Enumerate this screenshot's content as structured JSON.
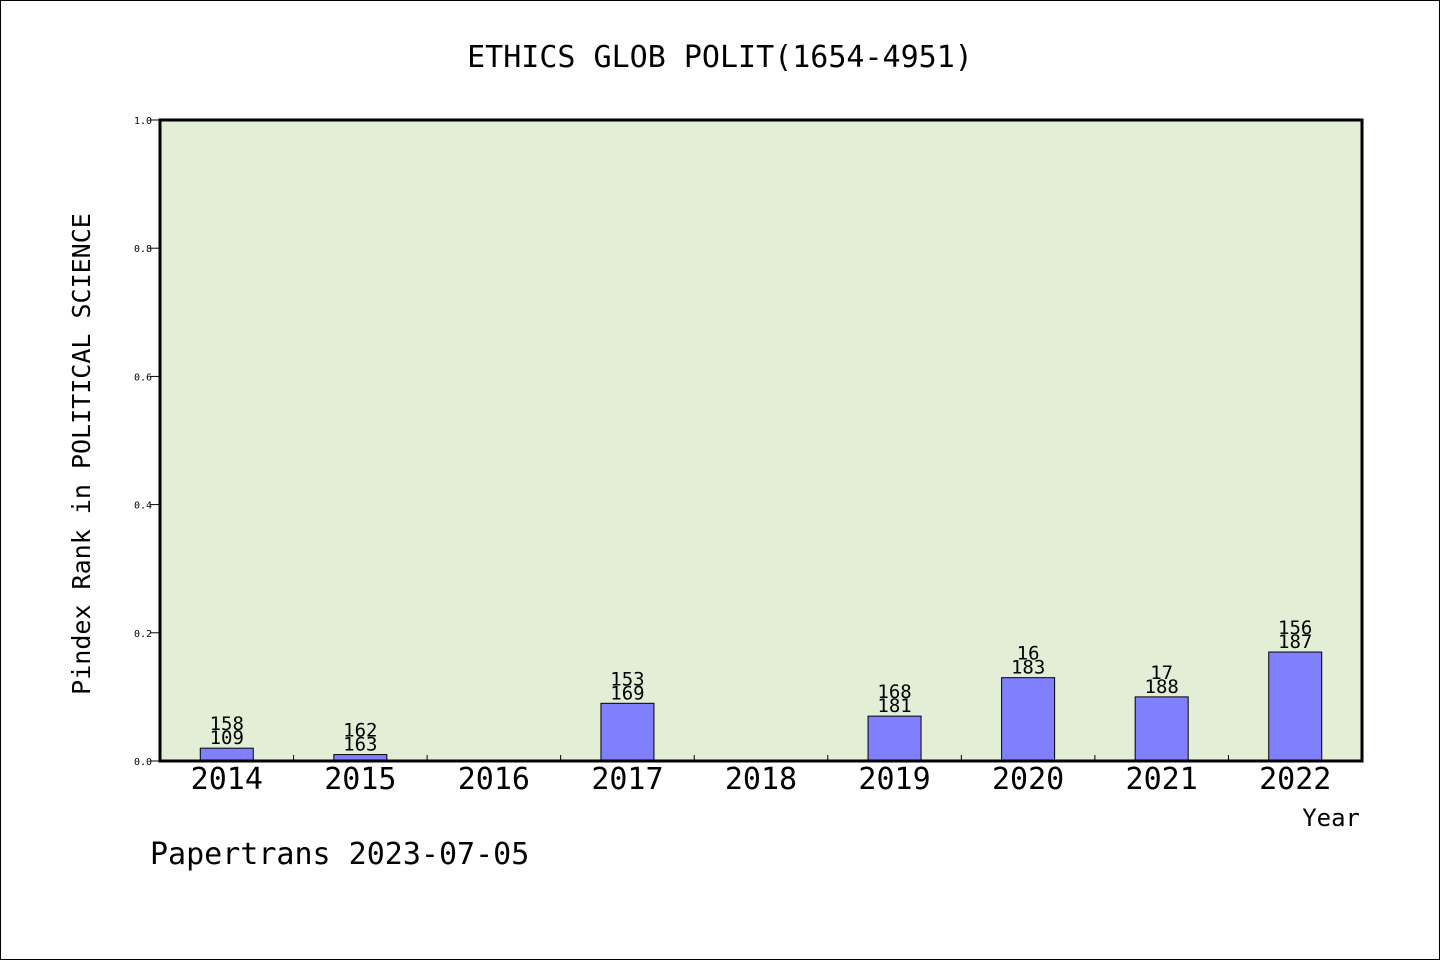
{
  "chart_data": {
    "type": "bar",
    "title": "ETHICS GLOB POLIT(1654-4951)",
    "xlabel": "Year",
    "ylabel": "Pindex Rank in POLITICAL SCIENCE",
    "ylim": [
      0,
      1.0
    ],
    "yticks": [
      "0.0",
      "0.2",
      "0.4",
      "0.6",
      "0.8",
      "1.0"
    ],
    "categories": [
      "2014",
      "2015",
      "2016",
      "2017",
      "2018",
      "2019",
      "2020",
      "2021",
      "2022"
    ],
    "values": [
      0.02,
      0.01,
      null,
      0.09,
      null,
      0.07,
      0.13,
      0.1,
      0.17
    ],
    "labels_top": [
      "158",
      "162",
      "",
      "153",
      "",
      "168",
      "16",
      "17",
      "156"
    ],
    "labels_bottom": [
      "109",
      "163",
      "",
      "169",
      "",
      "181",
      "183",
      "188",
      "187"
    ],
    "grid": false,
    "colors": {
      "plot_bg": "#e2efd6",
      "bar": "#8080ff",
      "bar_edge": "#000000",
      "axes": "#000000"
    }
  },
  "footer": "Papertrans 2023-07-05"
}
